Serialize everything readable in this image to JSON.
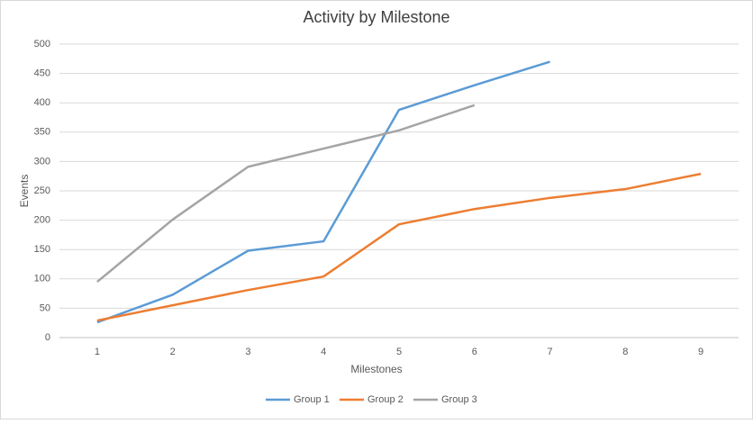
{
  "chart_data": {
    "type": "line",
    "title": "Activity by Milestone",
    "x_label": "Milestones",
    "y_label": "Events",
    "categories": [
      "1",
      "2",
      "3",
      "4",
      "5",
      "6",
      "7",
      "8",
      "9"
    ],
    "series": [
      {
        "name": "Group 1",
        "color": "#5b9bd5",
        "values": [
          26,
          73,
          148,
          164,
          388,
          430,
          470,
          null,
          null
        ]
      },
      {
        "name": "Group 2",
        "color": "#ed7d31",
        "values": [
          29,
          55,
          81,
          104,
          193,
          219,
          238,
          253,
          279
        ]
      },
      {
        "name": "Group 3",
        "color": "#a5a5a5",
        "values": [
          95,
          201,
          291,
          322,
          353,
          396,
          null,
          null,
          null
        ]
      }
    ],
    "ylim": [
      0,
      500
    ],
    "yticks": [
      0,
      50,
      100,
      150,
      200,
      250,
      300,
      350,
      400,
      450,
      500
    ],
    "grid": true,
    "legend": "bottom"
  }
}
